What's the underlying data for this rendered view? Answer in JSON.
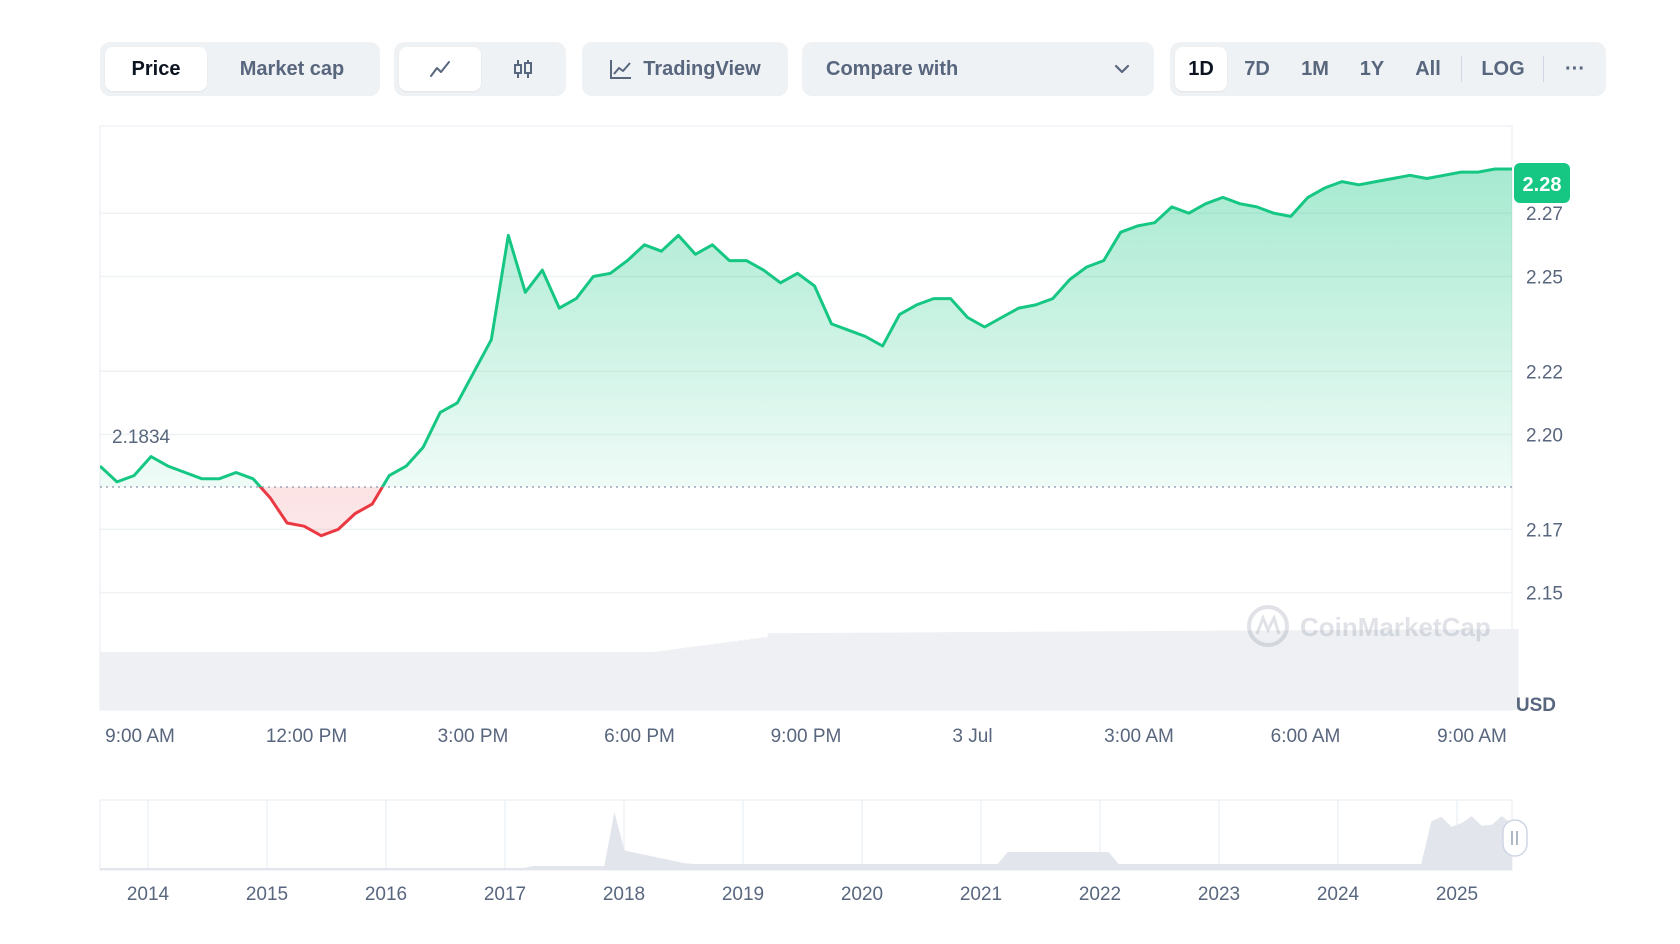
{
  "toolbar": {
    "price_label": "Price",
    "market_cap_label": "Market cap",
    "tradingview_label": "TradingView",
    "compare_label": "Compare with",
    "ranges": [
      "1D",
      "7D",
      "1M",
      "1Y",
      "All"
    ],
    "active_range": "1D",
    "log_label": "LOG",
    "more_label": "···",
    "line_icon": "line-chart-icon",
    "candle_icon": "candlestick-icon"
  },
  "chart": {
    "open_label": "2.1834",
    "current_price_label": "2.28",
    "currency_label": "USD",
    "watermark": "CoinMarketCap",
    "colors": {
      "up": "#16c784",
      "down": "#ea3943",
      "badge": "#16c784"
    }
  },
  "chart_data": {
    "type": "area",
    "y_ticks": [
      "2.27",
      "2.25",
      "2.22",
      "2.20",
      "2.17",
      "2.15"
    ],
    "x_ticks": [
      "9:00 AM",
      "12:00 PM",
      "3:00 PM",
      "6:00 PM",
      "9:00 PM",
      "3 Jul",
      "3:00 AM",
      "6:00 AM",
      "9:00 AM"
    ],
    "ylim": [
      2.135,
      2.29
    ],
    "baseline": 2.1834,
    "x": [
      0,
      0.3,
      0.6,
      0.9,
      1.2,
      1.5,
      1.8,
      2.1,
      2.4,
      2.7,
      3.0,
      3.3,
      3.6,
      3.9,
      4.2,
      4.5,
      4.8,
      5.1,
      5.4,
      5.7,
      6.0,
      6.3,
      6.6,
      6.9,
      7.2,
      7.5,
      7.8,
      8.1,
      8.4,
      8.7,
      9.0,
      9.3,
      9.6,
      9.9,
      10.2,
      10.5,
      10.8,
      11.1,
      11.4,
      11.7,
      12.0,
      12.3,
      12.6,
      12.9,
      13.2,
      13.5,
      13.8,
      14.1,
      14.4,
      14.7,
      15.0,
      15.3,
      15.6,
      15.9,
      16.2,
      16.5,
      16.8,
      17.1,
      17.4,
      17.7,
      18.0,
      18.3,
      18.6,
      18.9,
      19.2,
      19.5,
      19.8,
      20.1,
      20.4,
      20.7,
      21.0,
      21.3,
      21.6,
      21.9,
      22.2,
      22.5,
      22.8,
      23.1,
      23.4,
      23.7,
      24.0,
      24.3,
      24.6,
      24.9
    ],
    "y": [
      2.19,
      2.185,
      2.187,
      2.193,
      2.19,
      2.188,
      2.186,
      2.186,
      2.188,
      2.186,
      2.18,
      2.172,
      2.171,
      2.168,
      2.17,
      2.175,
      2.178,
      2.187,
      2.19,
      2.196,
      2.207,
      2.21,
      2.22,
      2.23,
      2.263,
      2.245,
      2.252,
      2.24,
      2.243,
      2.25,
      2.251,
      2.255,
      2.26,
      2.258,
      2.263,
      2.257,
      2.26,
      2.255,
      2.255,
      2.252,
      2.248,
      2.251,
      2.247,
      2.235,
      2.233,
      2.231,
      2.228,
      2.238,
      2.241,
      2.243,
      2.243,
      2.237,
      2.234,
      2.237,
      2.24,
      2.241,
      2.243,
      2.249,
      2.253,
      2.255,
      2.264,
      2.266,
      2.267,
      2.272,
      2.27,
      2.273,
      2.275,
      2.273,
      2.272,
      2.27,
      2.269,
      2.275,
      2.278,
      2.28,
      2.279,
      2.28,
      2.281,
      2.282,
      2.281,
      2.282,
      2.283,
      2.283,
      2.284,
      2.284
    ],
    "navigator_years": [
      "2014",
      "2015",
      "2016",
      "2017",
      "2018",
      "2019",
      "2020",
      "2021",
      "2022",
      "2023",
      "2024",
      "2025"
    ]
  }
}
